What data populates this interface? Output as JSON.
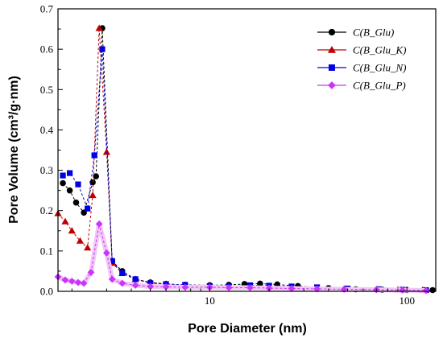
{
  "chart_data": {
    "type": "line",
    "title": "",
    "xlabel": "Pore Diameter (nm)",
    "ylabel": "Pore Volume (cm³/g·nm)",
    "x_scale": "log",
    "xlim": [
      1.7,
      140
    ],
    "ylim": [
      0,
      0.7
    ],
    "x_ticks": [
      10,
      100
    ],
    "y_ticks": [
      0.0,
      0.1,
      0.2,
      0.3,
      0.4,
      0.5,
      0.6,
      0.7
    ],
    "grid": false,
    "legend_position": "top-right",
    "series": [
      {
        "name": "C(B_Glu)",
        "color": "#000000",
        "marker": "circle",
        "points": [
          [
            1.8,
            0.268
          ],
          [
            1.95,
            0.25
          ],
          [
            2.1,
            0.22
          ],
          [
            2.3,
            0.195
          ],
          [
            2.55,
            0.27
          ],
          [
            2.65,
            0.285
          ],
          [
            2.85,
            0.652
          ],
          [
            3.2,
            0.075
          ],
          [
            3.6,
            0.05
          ],
          [
            4.2,
            0.03
          ],
          [
            5.0,
            0.022
          ],
          [
            6.0,
            0.018
          ],
          [
            7.5,
            0.016
          ],
          [
            10.0,
            0.015
          ],
          [
            12.5,
            0.016
          ],
          [
            15.0,
            0.018
          ],
          [
            18.0,
            0.019
          ],
          [
            22.0,
            0.017
          ],
          [
            28.0,
            0.013
          ],
          [
            40.0,
            0.008
          ],
          [
            55.0,
            0.005
          ],
          [
            75.0,
            0.004
          ],
          [
            100.0,
            0.003
          ],
          [
            135.0,
            0.003
          ]
        ]
      },
      {
        "name": "C(B_Glu_K)",
        "color": "#c00000",
        "marker": "triangle",
        "points": [
          [
            1.7,
            0.193
          ],
          [
            1.85,
            0.173
          ],
          [
            2.0,
            0.15
          ],
          [
            2.2,
            0.125
          ],
          [
            2.4,
            0.108
          ],
          [
            2.55,
            0.238
          ],
          [
            2.75,
            0.652
          ],
          [
            3.0,
            0.345
          ],
          [
            3.2,
            0.07
          ],
          [
            3.6,
            0.045
          ],
          [
            4.2,
            0.03
          ],
          [
            5.0,
            0.022
          ],
          [
            6.0,
            0.018
          ],
          [
            7.5,
            0.015
          ],
          [
            10.0,
            0.013
          ],
          [
            12.5,
            0.012
          ],
          [
            16.0,
            0.012
          ],
          [
            20.0,
            0.011
          ],
          [
            26.0,
            0.01
          ],
          [
            35.0,
            0.008
          ],
          [
            48.0,
            0.006
          ],
          [
            70.0,
            0.005
          ],
          [
            90.0,
            0.004
          ],
          [
            120.0,
            0.003
          ]
        ]
      },
      {
        "name": "C(B_Glu_N)",
        "color": "#0000e0",
        "marker": "square",
        "points": [
          [
            1.8,
            0.287
          ],
          [
            1.95,
            0.293
          ],
          [
            2.15,
            0.265
          ],
          [
            2.4,
            0.205
          ],
          [
            2.6,
            0.337
          ],
          [
            2.85,
            0.6
          ],
          [
            3.2,
            0.075
          ],
          [
            3.6,
            0.045
          ],
          [
            4.2,
            0.03
          ],
          [
            5.0,
            0.02
          ],
          [
            6.0,
            0.018
          ],
          [
            7.5,
            0.016
          ],
          [
            10.0,
            0.013
          ],
          [
            12.5,
            0.013
          ],
          [
            16.0,
            0.015
          ],
          [
            20.0,
            0.014
          ],
          [
            26.0,
            0.012
          ],
          [
            35.0,
            0.01
          ],
          [
            50.0,
            0.007
          ],
          [
            72.0,
            0.005
          ],
          [
            95.0,
            0.004
          ],
          [
            125.0,
            0.003
          ]
        ]
      },
      {
        "name": "C(B_Glu_P)",
        "color": "#cc33ff",
        "marker": "diamond",
        "points": [
          [
            1.7,
            0.036
          ],
          [
            1.85,
            0.028
          ],
          [
            2.0,
            0.025
          ],
          [
            2.15,
            0.022
          ],
          [
            2.3,
            0.02
          ],
          [
            2.5,
            0.047
          ],
          [
            2.75,
            0.167
          ],
          [
            3.0,
            0.095
          ],
          [
            3.2,
            0.03
          ],
          [
            3.6,
            0.02
          ],
          [
            4.2,
            0.015
          ],
          [
            5.0,
            0.012
          ],
          [
            6.0,
            0.011
          ],
          [
            7.5,
            0.01
          ],
          [
            10.0,
            0.01
          ],
          [
            12.5,
            0.009
          ],
          [
            16.0,
            0.009
          ],
          [
            20.0,
            0.008
          ],
          [
            26.0,
            0.007
          ],
          [
            35.0,
            0.006
          ],
          [
            48.0,
            0.005
          ],
          [
            70.0,
            0.004
          ],
          [
            95.0,
            0.003
          ],
          [
            125.0,
            0.002
          ]
        ]
      }
    ]
  }
}
